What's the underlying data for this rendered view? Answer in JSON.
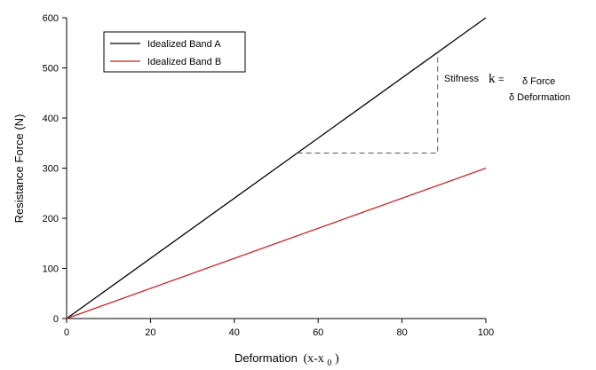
{
  "chart_data": {
    "type": "line",
    "xlabel": "Deformation",
    "xlabel_math": "(x-x",
    "xlabel_sub": "0",
    "xlabel_close": ")",
    "ylabel": "Resistance Force (N)",
    "xlim": [
      0,
      100
    ],
    "ylim": [
      0,
      600
    ],
    "xticks": [
      0,
      20,
      40,
      60,
      80,
      100
    ],
    "yticks": [
      0,
      100,
      200,
      300,
      400,
      500,
      600
    ],
    "grid": false,
    "legend_position": "top-left",
    "series": [
      {
        "name": "Idealized Band A",
        "color": "#000000",
        "x": [
          0,
          100
        ],
        "y": [
          0,
          600
        ]
      },
      {
        "name": "Idealized Band B",
        "color": "#cc2222",
        "x": [
          0,
          100
        ],
        "y": [
          0,
          300
        ]
      }
    ],
    "annotation": {
      "stiffness_label": "Stifness",
      "k_symbol": "k",
      "equals": "=",
      "numerator": "δ Force",
      "denominator": "δ Deformation",
      "triangle": {
        "x0": 55,
        "x1": 88.5,
        "y0": 330,
        "y1": 531
      }
    }
  }
}
